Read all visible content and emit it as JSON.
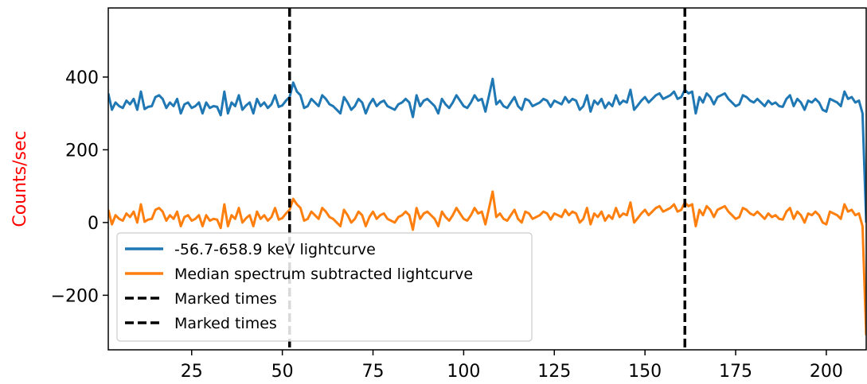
{
  "chart_data": {
    "type": "line",
    "ylabel": "Counts/sec",
    "ylabel_color": "#ff0000",
    "xlim": [
      2,
      211
    ],
    "ylim": [
      -350,
      590
    ],
    "x_ticks": [
      25,
      50,
      75,
      100,
      125,
      150,
      175,
      200
    ],
    "y_ticks": [
      -200,
      0,
      200,
      400
    ],
    "y_tick_labels": [
      "−200",
      "0",
      "200",
      "400"
    ],
    "grid": false,
    "legend_placement": "lower-left",
    "series": [
      {
        "name": "-56.7-658.9 keV lightcurve",
        "color": "#1f77b4",
        "x": [
          2,
          3,
          4,
          5,
          6,
          7,
          8,
          9,
          10,
          11,
          12,
          13,
          14,
          15,
          16,
          17,
          18,
          19,
          20,
          21,
          22,
          23,
          24,
          25,
          26,
          27,
          28,
          29,
          30,
          31,
          32,
          33,
          34,
          35,
          36,
          37,
          38,
          39,
          40,
          41,
          42,
          43,
          44,
          45,
          46,
          47,
          48,
          49,
          50,
          51,
          52,
          53,
          54,
          55,
          56,
          57,
          58,
          59,
          60,
          61,
          62,
          63,
          64,
          65,
          66,
          67,
          68,
          69,
          70,
          71,
          72,
          73,
          74,
          75,
          76,
          77,
          78,
          79,
          80,
          81,
          82,
          83,
          84,
          85,
          86,
          87,
          88,
          89,
          90,
          91,
          92,
          93,
          94,
          95,
          96,
          97,
          98,
          99,
          100,
          101,
          102,
          103,
          104,
          105,
          106,
          107,
          108,
          109,
          110,
          111,
          112,
          113,
          114,
          115,
          116,
          117,
          118,
          119,
          120,
          121,
          122,
          123,
          124,
          125,
          126,
          127,
          128,
          129,
          130,
          131,
          132,
          133,
          134,
          135,
          136,
          137,
          138,
          139,
          140,
          141,
          142,
          143,
          144,
          145,
          146,
          147,
          148,
          149,
          150,
          151,
          152,
          153,
          154,
          155,
          156,
          157,
          158,
          159,
          160,
          161,
          162,
          163,
          164,
          165,
          166,
          167,
          168,
          169,
          170,
          171,
          172,
          173,
          174,
          175,
          176,
          177,
          178,
          179,
          180,
          181,
          182,
          183,
          184,
          185,
          186,
          187,
          188,
          189,
          190,
          191,
          192,
          193,
          194,
          195,
          196,
          197,
          198,
          199,
          200,
          201,
          202,
          203,
          204,
          205,
          206,
          207,
          208,
          209,
          210,
          211
        ],
        "values": [
          355,
          310,
          330,
          320,
          315,
          335,
          325,
          340,
          310,
          360,
          312,
          318,
          320,
          345,
          350,
          340,
          315,
          330,
          320,
          340,
          300,
          325,
          330,
          315,
          320,
          330,
          300,
          330,
          315,
          320,
          318,
          295,
          360,
          300,
          330,
          320,
          350,
          310,
          322,
          330,
          300,
          340,
          320,
          330,
          315,
          325,
          350,
          318,
          322,
          335,
          345,
          385,
          360,
          350,
          315,
          320,
          340,
          330,
          320,
          350,
          340,
          325,
          320,
          310,
          300,
          345,
          330,
          310,
          320,
          340,
          330,
          300,
          325,
          340,
          320,
          330,
          335,
          320,
          315,
          310,
          325,
          330,
          340,
          330,
          290,
          350,
          320,
          335,
          340,
          330,
          320,
          300,
          340,
          325,
          315,
          330,
          350,
          335,
          320,
          315,
          330,
          350,
          335,
          340,
          305,
          350,
          395,
          325,
          335,
          320,
          315,
          330,
          345,
          320,
          310,
          340,
          335,
          320,
          325,
          330,
          340,
          335,
          318,
          335,
          330,
          325,
          345,
          330,
          340,
          335,
          310,
          320,
          350,
          305,
          335,
          325,
          340,
          315,
          330,
          320,
          350,
          325,
          335,
          330,
          365,
          310,
          322,
          335,
          345,
          330,
          340,
          350,
          355,
          340,
          345,
          350,
          360,
          340,
          345,
          365,
          355,
          360,
          300,
          345,
          330,
          355,
          345,
          325,
          345,
          350,
          355,
          340,
          330,
          320,
          325,
          350,
          345,
          335,
          330,
          340,
          330,
          320,
          335,
          325,
          330,
          320,
          318,
          340,
          350,
          320,
          340,
          330,
          310,
          335,
          330,
          340,
          330,
          310,
          305,
          340,
          335,
          330,
          320,
          360,
          340,
          345,
          330,
          335,
          300,
          0
        ]
      },
      {
        "name": "Median spectrum subtracted lightcurve",
        "color": "#ff7f0e",
        "x": [
          2,
          3,
          4,
          5,
          6,
          7,
          8,
          9,
          10,
          11,
          12,
          13,
          14,
          15,
          16,
          17,
          18,
          19,
          20,
          21,
          22,
          23,
          24,
          25,
          26,
          27,
          28,
          29,
          30,
          31,
          32,
          33,
          34,
          35,
          36,
          37,
          38,
          39,
          40,
          41,
          42,
          43,
          44,
          45,
          46,
          47,
          48,
          49,
          50,
          51,
          52,
          53,
          54,
          55,
          56,
          57,
          58,
          59,
          60,
          61,
          62,
          63,
          64,
          65,
          66,
          67,
          68,
          69,
          70,
          71,
          72,
          73,
          74,
          75,
          76,
          77,
          78,
          79,
          80,
          81,
          82,
          83,
          84,
          85,
          86,
          87,
          88,
          89,
          90,
          91,
          92,
          93,
          94,
          95,
          96,
          97,
          98,
          99,
          100,
          101,
          102,
          103,
          104,
          105,
          106,
          107,
          108,
          109,
          110,
          111,
          112,
          113,
          114,
          115,
          116,
          117,
          118,
          119,
          120,
          121,
          122,
          123,
          124,
          125,
          126,
          127,
          128,
          129,
          130,
          131,
          132,
          133,
          134,
          135,
          136,
          137,
          138,
          139,
          140,
          141,
          142,
          143,
          144,
          145,
          146,
          147,
          148,
          149,
          150,
          151,
          152,
          153,
          154,
          155,
          156,
          157,
          158,
          159,
          160,
          161,
          162,
          163,
          164,
          165,
          166,
          167,
          168,
          169,
          170,
          171,
          172,
          173,
          174,
          175,
          176,
          177,
          178,
          179,
          180,
          181,
          182,
          183,
          184,
          185,
          186,
          187,
          188,
          189,
          190,
          191,
          192,
          193,
          194,
          195,
          196,
          197,
          198,
          199,
          200,
          201,
          202,
          203,
          204,
          205,
          206,
          207,
          208,
          209,
          210,
          211
        ],
        "values": [
          35,
          -5,
          20,
          10,
          5,
          25,
          15,
          30,
          0,
          50,
          2,
          8,
          10,
          35,
          40,
          30,
          5,
          20,
          10,
          30,
          -10,
          15,
          20,
          5,
          10,
          20,
          -10,
          20,
          5,
          10,
          8,
          -15,
          50,
          -10,
          20,
          10,
          40,
          0,
          12,
          20,
          -10,
          30,
          10,
          20,
          5,
          15,
          40,
          8,
          12,
          25,
          35,
          65,
          50,
          40,
          5,
          10,
          30,
          20,
          10,
          40,
          30,
          15,
          10,
          0,
          -10,
          35,
          20,
          0,
          10,
          30,
          20,
          -10,
          15,
          30,
          10,
          20,
          25,
          10,
          5,
          0,
          15,
          20,
          30,
          20,
          -20,
          40,
          10,
          25,
          30,
          20,
          10,
          -10,
          30,
          15,
          5,
          20,
          40,
          25,
          10,
          5,
          20,
          40,
          25,
          30,
          -5,
          40,
          85,
          15,
          25,
          10,
          5,
          20,
          35,
          10,
          0,
          30,
          25,
          10,
          15,
          20,
          30,
          25,
          8,
          25,
          20,
          15,
          35,
          20,
          30,
          25,
          0,
          10,
          40,
          -5,
          25,
          15,
          30,
          5,
          20,
          10,
          40,
          15,
          25,
          20,
          55,
          0,
          12,
          25,
          35,
          20,
          30,
          40,
          45,
          30,
          35,
          40,
          50,
          30,
          35,
          55,
          45,
          50,
          -10,
          35,
          20,
          45,
          35,
          15,
          35,
          40,
          45,
          30,
          20,
          10,
          15,
          40,
          35,
          25,
          20,
          30,
          20,
          10,
          25,
          15,
          20,
          10,
          8,
          30,
          40,
          10,
          30,
          20,
          0,
          25,
          20,
          30,
          20,
          0,
          -5,
          30,
          25,
          20,
          10,
          50,
          30,
          35,
          20,
          25,
          -10,
          -310
        ]
      }
    ],
    "marked_lines": [
      {
        "name": "Marked times",
        "x": 52,
        "color": "#000000",
        "style": "dashed"
      },
      {
        "name": "Marked times",
        "x": 161,
        "color": "#000000",
        "style": "dashed"
      }
    ]
  }
}
